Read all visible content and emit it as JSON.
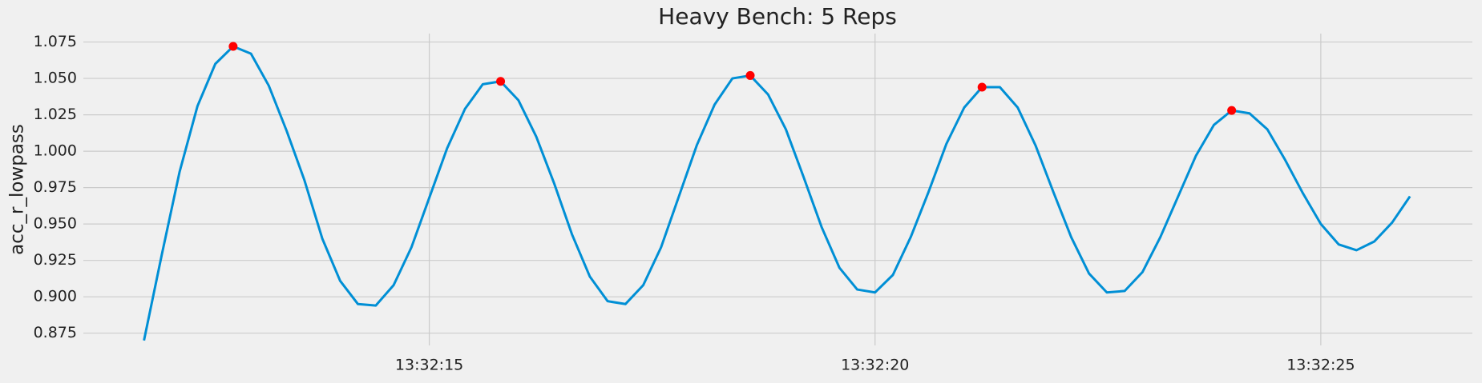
{
  "chart_data": {
    "type": "line",
    "title": "Heavy Bench: 5 Reps",
    "y_label": "acc_r_lowpass",
    "x": [
      "13:32:11.8",
      "13:32:12.0",
      "13:32:12.2",
      "13:32:12.4",
      "13:32:12.6",
      "13:32:12.8",
      "13:32:13.0",
      "13:32:13.2",
      "13:32:13.4",
      "13:32:13.6",
      "13:32:13.8",
      "13:32:14.0",
      "13:32:14.2",
      "13:32:14.4",
      "13:32:14.6",
      "13:32:14.8",
      "13:32:15.0",
      "13:32:15.2",
      "13:32:15.4",
      "13:32:15.6",
      "13:32:15.8",
      "13:32:16.0",
      "13:32:16.2",
      "13:32:16.4",
      "13:32:16.6",
      "13:32:16.8",
      "13:32:17.0",
      "13:32:17.2",
      "13:32:17.4",
      "13:32:17.6",
      "13:32:17.8",
      "13:32:18.0",
      "13:32:18.2",
      "13:32:18.4",
      "13:32:18.6",
      "13:32:18.8",
      "13:32:19.0",
      "13:32:19.2",
      "13:32:19.4",
      "13:32:19.6",
      "13:32:19.8",
      "13:32:20.0",
      "13:32:20.2",
      "13:32:20.4",
      "13:32:20.6",
      "13:32:20.8",
      "13:32:21.0",
      "13:32:21.2",
      "13:32:21.4",
      "13:32:21.6",
      "13:32:21.8",
      "13:32:22.0",
      "13:32:22.2",
      "13:32:22.4",
      "13:32:22.6",
      "13:32:22.8",
      "13:32:23.0",
      "13:32:23.2",
      "13:32:23.4",
      "13:32:23.6",
      "13:32:23.8",
      "13:32:24.0",
      "13:32:24.2",
      "13:32:24.4",
      "13:32:24.6",
      "13:32:24.8",
      "13:32:25.0",
      "13:32:25.2",
      "13:32:25.4",
      "13:32:25.6",
      "13:32:25.8",
      "13:32:26.0"
    ],
    "series": [
      {
        "color": "#008fd5",
        "values": [
          0.87,
          0.929,
          0.986,
          1.031,
          1.06,
          1.072,
          1.067,
          1.045,
          1.014,
          0.98,
          0.94,
          0.911,
          0.895,
          0.894,
          0.908,
          0.934,
          0.968,
          1.002,
          1.029,
          1.046,
          1.048,
          1.035,
          1.01,
          0.978,
          0.943,
          0.914,
          0.897,
          0.895,
          0.908,
          0.934,
          0.969,
          1.004,
          1.032,
          1.05,
          1.052,
          1.039,
          1.015,
          0.982,
          0.948,
          0.92,
          0.905,
          0.903,
          0.915,
          0.941,
          0.972,
          1.005,
          1.03,
          1.044,
          1.044,
          1.03,
          1.004,
          0.972,
          0.941,
          0.916,
          0.903,
          0.904,
          0.917,
          0.941,
          0.969,
          0.997,
          1.018,
          1.028,
          1.026,
          1.015,
          0.994,
          0.971,
          0.95,
          0.936,
          0.932,
          0.938,
          0.951,
          0.969
        ]
      }
    ],
    "peaks": {
      "color": "#ff0000",
      "x": [
        "13:32:12.8",
        "13:32:15.8",
        "13:32:18.6",
        "13:32:21.2",
        "13:32:24.0"
      ],
      "values": [
        1.072,
        1.048,
        1.052,
        1.044,
        1.028
      ]
    },
    "xlim": [
      "13:32:11.12",
      "13:32:26.70"
    ],
    "xticks": [
      "13:32:15",
      "13:32:20",
      "13:32:25"
    ],
    "ylim": [
      0.8666,
      1.0808
    ],
    "yticks": [
      {
        "value": 0.875,
        "label": "0.875"
      },
      {
        "value": 0.9,
        "label": "0.900"
      },
      {
        "value": 0.925,
        "label": "0.925"
      },
      {
        "value": 0.95,
        "label": "0.950"
      },
      {
        "value": 0.975,
        "label": "0.975"
      },
      {
        "value": 1.0,
        "label": "1.000"
      },
      {
        "value": 1.025,
        "label": "1.025"
      },
      {
        "value": 1.05,
        "label": "1.050"
      },
      {
        "value": 1.075,
        "label": "1.075"
      }
    ],
    "grid": true
  }
}
